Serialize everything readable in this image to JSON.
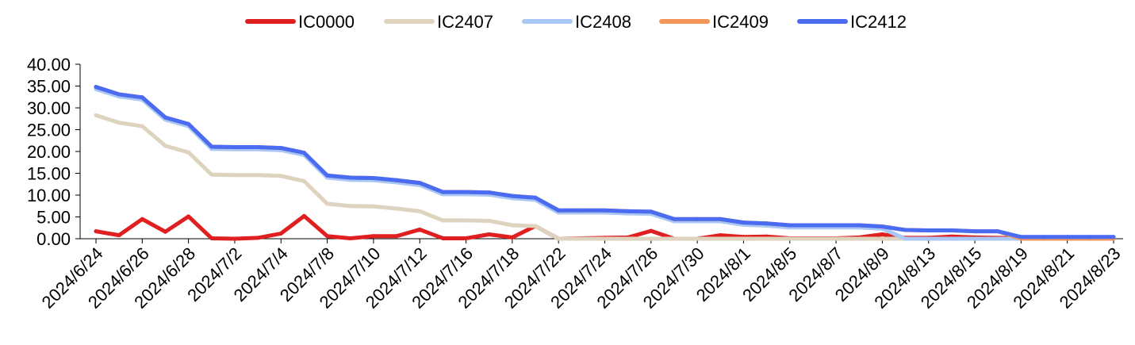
{
  "chart_data": {
    "type": "line",
    "title": "",
    "xlabel": "",
    "ylabel": "",
    "ylim": [
      0,
      40
    ],
    "yticks": [
      "0.00",
      "5.00",
      "10.00",
      "15.00",
      "20.00",
      "25.00",
      "30.00",
      "35.00",
      "40.00"
    ],
    "grid": false,
    "legend_position": "top-center",
    "x": [
      "2024/6/24",
      "2024/6/25",
      "2024/6/26",
      "2024/6/27",
      "2024/6/28",
      "2024/7/1",
      "2024/7/2",
      "2024/7/3",
      "2024/7/4",
      "2024/7/5",
      "2024/7/8",
      "2024/7/9",
      "2024/7/10",
      "2024/7/11",
      "2024/7/12",
      "2024/7/15",
      "2024/7/16",
      "2024/7/17",
      "2024/7/18",
      "2024/7/19",
      "2024/7/22",
      "2024/7/23",
      "2024/7/24",
      "2024/7/25",
      "2024/7/26",
      "2024/7/29",
      "2024/7/30",
      "2024/7/31",
      "2024/8/1",
      "2024/8/2",
      "2024/8/5",
      "2024/8/6",
      "2024/8/7",
      "2024/8/8",
      "2024/8/9",
      "2024/8/12",
      "2024/8/13",
      "2024/8/14",
      "2024/8/15",
      "2024/8/16",
      "2024/8/19",
      "2024/8/20",
      "2024/8/21",
      "2024/8/22",
      "2024/8/23"
    ],
    "xtick_labels": [
      "2024/6/24",
      "2024/6/26",
      "2024/6/28",
      "2024/7/2",
      "2024/7/4",
      "2024/7/8",
      "2024/7/10",
      "2024/7/12",
      "2024/7/16",
      "2024/7/18",
      "2024/7/22",
      "2024/7/24",
      "2024/7/26",
      "2024/7/30",
      "2024/8/1",
      "2024/8/5",
      "2024/8/7",
      "2024/8/9",
      "2024/8/13",
      "2024/8/15",
      "2024/8/19",
      "2024/8/21",
      "2024/8/23"
    ],
    "series": [
      {
        "name": "IC0000",
        "color": "#e02020",
        "values": [
          1.7,
          0.8,
          4.5,
          1.6,
          5.1,
          0.1,
          0.0,
          0.2,
          1.2,
          5.2,
          0.6,
          0.1,
          0.6,
          0.6,
          2.1,
          0.1,
          0.1,
          1.0,
          0.3,
          2.9,
          0.0,
          0.1,
          0.2,
          0.3,
          1.8,
          0.0,
          0.0,
          0.8,
          0.4,
          0.5,
          0.1,
          0.1,
          0.1,
          0.3,
          1.0,
          0.2,
          0.2,
          0.5,
          0.3,
          0.2,
          0.1,
          0.1,
          0.1,
          0.1,
          0.1
        ]
      },
      {
        "name": "IC2407",
        "color": "#ddd3bf",
        "values": [
          28.3,
          26.6,
          25.8,
          21.3,
          19.8,
          14.7,
          14.6,
          14.6,
          14.4,
          13.2,
          8.0,
          7.5,
          7.4,
          6.9,
          6.3,
          4.2,
          4.2,
          4.1,
          3.1,
          2.9,
          0.0,
          0.0,
          0.0,
          0.0,
          0.0,
          0.0,
          0.0,
          0.0,
          0.0,
          0.0,
          0.0,
          0.0,
          0.0,
          0.0,
          0.0,
          0.0,
          0.0,
          0.0,
          0.0,
          0.0,
          0.0,
          0.0,
          0.0,
          0.0,
          0.0
        ]
      },
      {
        "name": "IC2408",
        "color": "#a9c8f5",
        "values": [
          34.3,
          32.6,
          31.9,
          27.3,
          25.8,
          20.6,
          20.5,
          20.5,
          20.3,
          19.2,
          14.0,
          13.5,
          13.4,
          12.9,
          12.3,
          10.2,
          10.2,
          10.1,
          9.3,
          8.9,
          6.0,
          6.0,
          6.0,
          5.8,
          5.7,
          4.0,
          4.0,
          4.0,
          3.2,
          3.0,
          2.6,
          2.6,
          2.6,
          2.6,
          2.3,
          0.0,
          0.0,
          0.0,
          0.0,
          0.0,
          0.0,
          0.0,
          0.0,
          0.0,
          0.0
        ]
      },
      {
        "name": "IC2409",
        "color": "#f4965a",
        "values": [
          34.8,
          33.1,
          32.4,
          27.8,
          26.3,
          21.1,
          21.0,
          21.0,
          20.8,
          19.7,
          14.5,
          14.0,
          13.9,
          13.4,
          12.8,
          10.7,
          10.7,
          10.6,
          9.8,
          9.4,
          6.5,
          6.5,
          6.5,
          6.3,
          6.2,
          4.5,
          4.5,
          4.5,
          3.7,
          3.5,
          3.1,
          3.1,
          3.1,
          3.1,
          2.8,
          2.0,
          1.9,
          1.9,
          1.7,
          1.7,
          0.0,
          0.0,
          0.0,
          0.0,
          0.0
        ]
      },
      {
        "name": "IC2412",
        "color": "#4a6cf3",
        "values": [
          34.8,
          33.1,
          32.4,
          27.8,
          26.3,
          21.1,
          21.0,
          21.0,
          20.8,
          19.7,
          14.5,
          14.0,
          13.9,
          13.4,
          12.8,
          10.7,
          10.7,
          10.6,
          9.8,
          9.4,
          6.5,
          6.5,
          6.5,
          6.3,
          6.2,
          4.5,
          4.5,
          4.5,
          3.7,
          3.5,
          3.1,
          3.1,
          3.1,
          3.1,
          2.8,
          2.0,
          1.9,
          1.9,
          1.7,
          1.7,
          0.4,
          0.4,
          0.4,
          0.4,
          0.4
        ]
      }
    ]
  }
}
